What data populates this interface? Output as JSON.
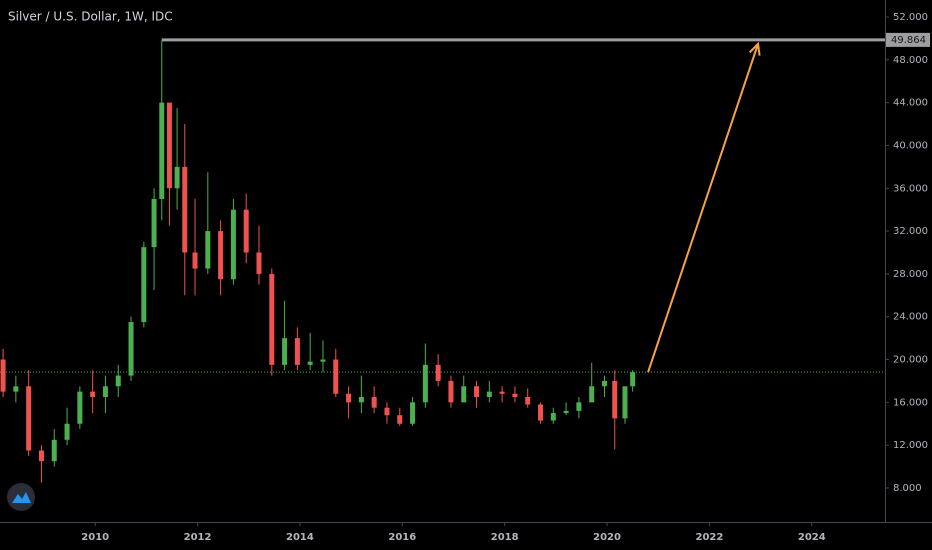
{
  "chart_data": {
    "type": "candlestick",
    "title": "Silver / U.S. Dollar, 1W, IDC",
    "x": [
      2008.2,
      2008.45,
      2008.7,
      2008.95,
      2009.2,
      2009.45,
      2009.7,
      2009.95,
      2010.2,
      2010.45,
      2010.7,
      2010.95,
      2011.15,
      2011.3,
      2011.45,
      2011.6,
      2011.75,
      2011.95,
      2012.2,
      2012.45,
      2012.7,
      2012.95,
      2013.2,
      2013.45,
      2013.7,
      2013.95,
      2014.2,
      2014.45,
      2014.7,
      2014.95,
      2015.2,
      2015.45,
      2015.7,
      2015.95,
      2016.2,
      2016.45,
      2016.7,
      2016.95,
      2017.2,
      2017.45,
      2017.7,
      2017.95,
      2018.2,
      2018.45,
      2018.7,
      2018.95,
      2019.2,
      2019.45,
      2019.7,
      2019.95,
      2020.15,
      2020.35,
      2020.5
    ],
    "open": [
      20,
      17,
      17.5,
      11.5,
      10.5,
      12.5,
      14,
      17,
      16.5,
      17.5,
      18.5,
      23.5,
      30.5,
      35,
      44,
      36,
      38,
      30,
      28.5,
      32,
      27.5,
      34,
      30,
      28,
      19.5,
      22,
      19.5,
      19.8,
      20,
      16.8,
      16,
      16.5,
      15.5,
      14.8,
      14,
      16,
      19.5,
      18,
      16,
      17.5,
      16.5,
      17,
      16.8,
      16.5,
      15.8,
      14.3,
      15,
      15.2,
      16,
      17.5,
      18,
      14.5,
      17.5
    ],
    "high": [
      21,
      18.5,
      19,
      12,
      13.5,
      15.5,
      17.5,
      19,
      18.5,
      19.5,
      24,
      31,
      36,
      49.8,
      44,
      43.5,
      42,
      35,
      37.5,
      33,
      35,
      35.5,
      32.5,
      28.5,
      25.5,
      23,
      22.5,
      21.8,
      21,
      17.5,
      18.5,
      17.5,
      16,
      15.5,
      16.5,
      21.5,
      20.5,
      18.5,
      18.5,
      18,
      18,
      17.5,
      17.5,
      17.3,
      16,
      15.5,
      16,
      16.5,
      19.7,
      18.5,
      19,
      17.5,
      19
    ],
    "low": [
      16.5,
      16,
      11,
      8.5,
      10,
      12,
      13.5,
      15,
      15,
      16.5,
      18,
      23,
      26.5,
      33,
      32.5,
      34,
      26,
      26,
      28,
      26,
      27,
      29,
      27,
      18.5,
      19,
      19,
      19,
      18.8,
      16.5,
      14.5,
      15,
      15,
      14,
      13.8,
      13.8,
      15.5,
      17.5,
      15.5,
      16,
      15.5,
      16,
      16,
      16,
      15.5,
      14,
      14,
      14.8,
      14.5,
      16,
      16.5,
      11.6,
      14,
      17
    ],
    "close": [
      17,
      17.5,
      11.5,
      10.5,
      12.5,
      14,
      17,
      16.5,
      17.5,
      18.5,
      23.5,
      30.5,
      35,
      44,
      36,
      38,
      30,
      28.5,
      32,
      27.5,
      34,
      30,
      28,
      19.5,
      22,
      19.5,
      19.8,
      20,
      16.8,
      16,
      16.5,
      15.5,
      14.8,
      14,
      16,
      19.5,
      18,
      16,
      17.5,
      16.5,
      17,
      16.8,
      16.5,
      15.8,
      14.3,
      15,
      15.2,
      16,
      17.5,
      18,
      14.5,
      17.5,
      18.8
    ],
    "up_color": "#4caf50",
    "down_color": "#ef5350",
    "xlim": [
      2008.14,
      2025.43
    ],
    "ylim": [
      4.82,
      53.59
    ],
    "xticks": [
      2010,
      2012,
      2014,
      2016,
      2018,
      2020,
      2022,
      2024
    ],
    "yticks": [
      {
        "value": 8,
        "label": "8.000"
      },
      {
        "value": 12,
        "label": "12.000"
      },
      {
        "value": 16,
        "label": "16.000"
      },
      {
        "value": 20,
        "label": "20.000"
      },
      {
        "value": 24,
        "label": "24.000"
      },
      {
        "value": 28,
        "label": "28.000"
      },
      {
        "value": 32,
        "label": "32.000"
      },
      {
        "value": 36,
        "label": "36.000"
      },
      {
        "value": 40,
        "label": "40.000"
      },
      {
        "value": 44,
        "label": "44.000"
      },
      {
        "value": 48,
        "label": "48.000"
      },
      {
        "value": 52,
        "label": "52.000"
      }
    ],
    "price_line": {
      "value": 49.864,
      "start": 2011.3,
      "color": "#9e9e9e"
    },
    "level_line": {
      "value": 18.82,
      "color": "#4caf50"
    },
    "arrow": {
      "x": [
        2020.8,
        2022.95
      ],
      "y": [
        18.8,
        49.5
      ],
      "color": "#f7a440"
    }
  }
}
